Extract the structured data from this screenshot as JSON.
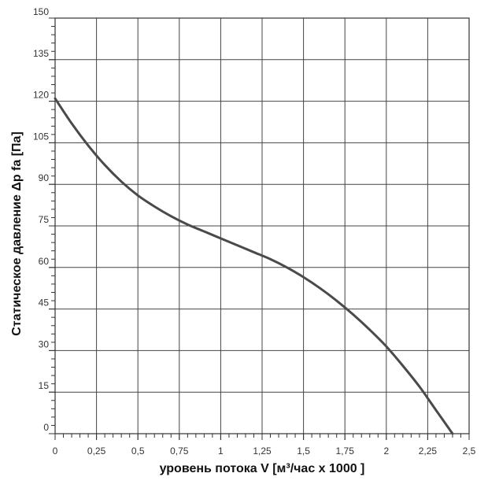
{
  "chart_data": {
    "type": "line",
    "xlabel": "уровень потока  V [м³/час x 1000 ]",
    "ylabel": "Статическое давление  Δp fa [Па]",
    "xlim": [
      0,
      2.5
    ],
    "ylim": [
      0,
      150
    ],
    "x_ticks": [
      0,
      0.25,
      0.5,
      0.75,
      1,
      1.25,
      1.5,
      1.75,
      2,
      2.25,
      2.5
    ],
    "x_tick_labels": [
      "0",
      "0,25",
      "0,5",
      "0,75",
      "1",
      "1,25",
      "1,5",
      "1,75",
      "2",
      "2,25",
      "2,5"
    ],
    "y_ticks": [
      0,
      15,
      30,
      45,
      60,
      75,
      90,
      105,
      120,
      135,
      150
    ],
    "y_tick_labels": [
      "0",
      "15",
      "30",
      "45",
      "60",
      "75",
      "90",
      "105",
      "120",
      "135",
      "150"
    ],
    "grid": true,
    "series": [
      {
        "x": [
          0,
          0.1,
          0.2,
          0.3,
          0.4,
          0.5,
          0.6,
          0.7,
          0.8,
          0.9,
          1.0,
          1.1,
          1.2,
          1.3,
          1.4,
          1.5,
          1.6,
          1.7,
          1.8,
          1.9,
          2.0,
          2.1,
          2.2,
          2.3,
          2.4
        ],
        "y": [
          121,
          112,
          104,
          97,
          91,
          86,
          82,
          78.5,
          75.5,
          73,
          70.5,
          68,
          65.5,
          63,
          60,
          56.5,
          52.5,
          48,
          43,
          37.5,
          31.5,
          24.5,
          17,
          8.5,
          0
        ],
        "color": "#4a4a4a"
      }
    ]
  }
}
